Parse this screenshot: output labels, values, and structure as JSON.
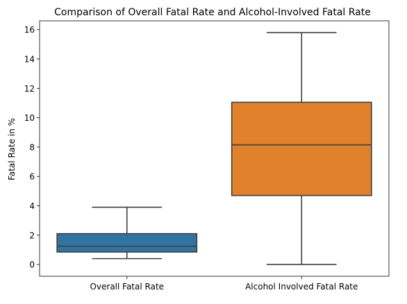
{
  "chart_data": {
    "type": "box",
    "title": "Comparison of Overall Fatal Rate and Alcohol-Involved Fatal Rate",
    "xlabel": "",
    "ylabel": "Fatal Rate in %",
    "ylim": [
      -0.8,
      16.6
    ],
    "yticks": [
      0,
      2,
      4,
      6,
      8,
      10,
      12,
      14,
      16
    ],
    "grid": false,
    "categories": [
      "Overall Fatal Rate",
      "Alcohol Involved Fatal Rate"
    ],
    "boxes": [
      {
        "category": "Overall Fatal Rate",
        "whisker_low": 0.4,
        "q1": 0.85,
        "median": 1.25,
        "q3": 2.1,
        "whisker_high": 3.9,
        "color": "#3274a1"
      },
      {
        "category": "Alcohol Involved Fatal Rate",
        "whisker_low": 0.0,
        "q1": 4.7,
        "median": 8.15,
        "q3": 11.05,
        "whisker_high": 15.8,
        "color": "#e1812c"
      }
    ],
    "line_color": "#3f3f3f"
  }
}
